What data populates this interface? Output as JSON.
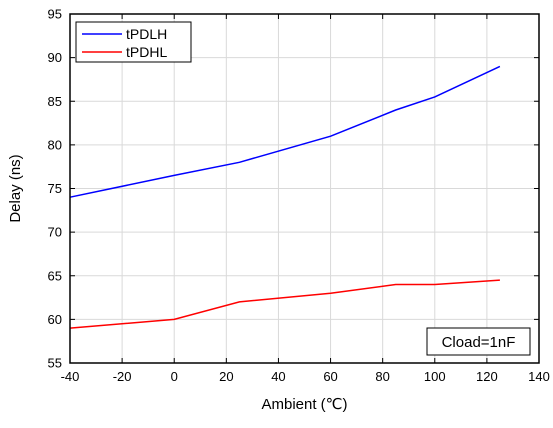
{
  "chart_data": {
    "type": "line",
    "title": "",
    "xlabel": "Ambient (℃)",
    "ylabel": "Delay (ns)",
    "xlim": [
      -40,
      140
    ],
    "ylim": [
      55,
      95
    ],
    "xticks": [
      -40,
      -20,
      0,
      20,
      40,
      60,
      80,
      100,
      120,
      140
    ],
    "yticks": [
      55,
      60,
      65,
      70,
      75,
      80,
      85,
      90,
      95
    ],
    "grid": true,
    "legend_position": "top-left",
    "series": [
      {
        "name": "tPDLH",
        "color": "#0000ff",
        "x": [
          -40,
          0,
          25,
          60,
          85,
          100,
          125
        ],
        "y": [
          74,
          76.5,
          78,
          81,
          84,
          85.5,
          89
        ]
      },
      {
        "name": "tPDHL",
        "color": "#ff0000",
        "x": [
          -40,
          0,
          25,
          60,
          85,
          100,
          125
        ],
        "y": [
          59,
          60,
          62,
          63,
          64,
          64,
          64.5
        ]
      }
    ],
    "annotation": "Cload=1nF"
  }
}
